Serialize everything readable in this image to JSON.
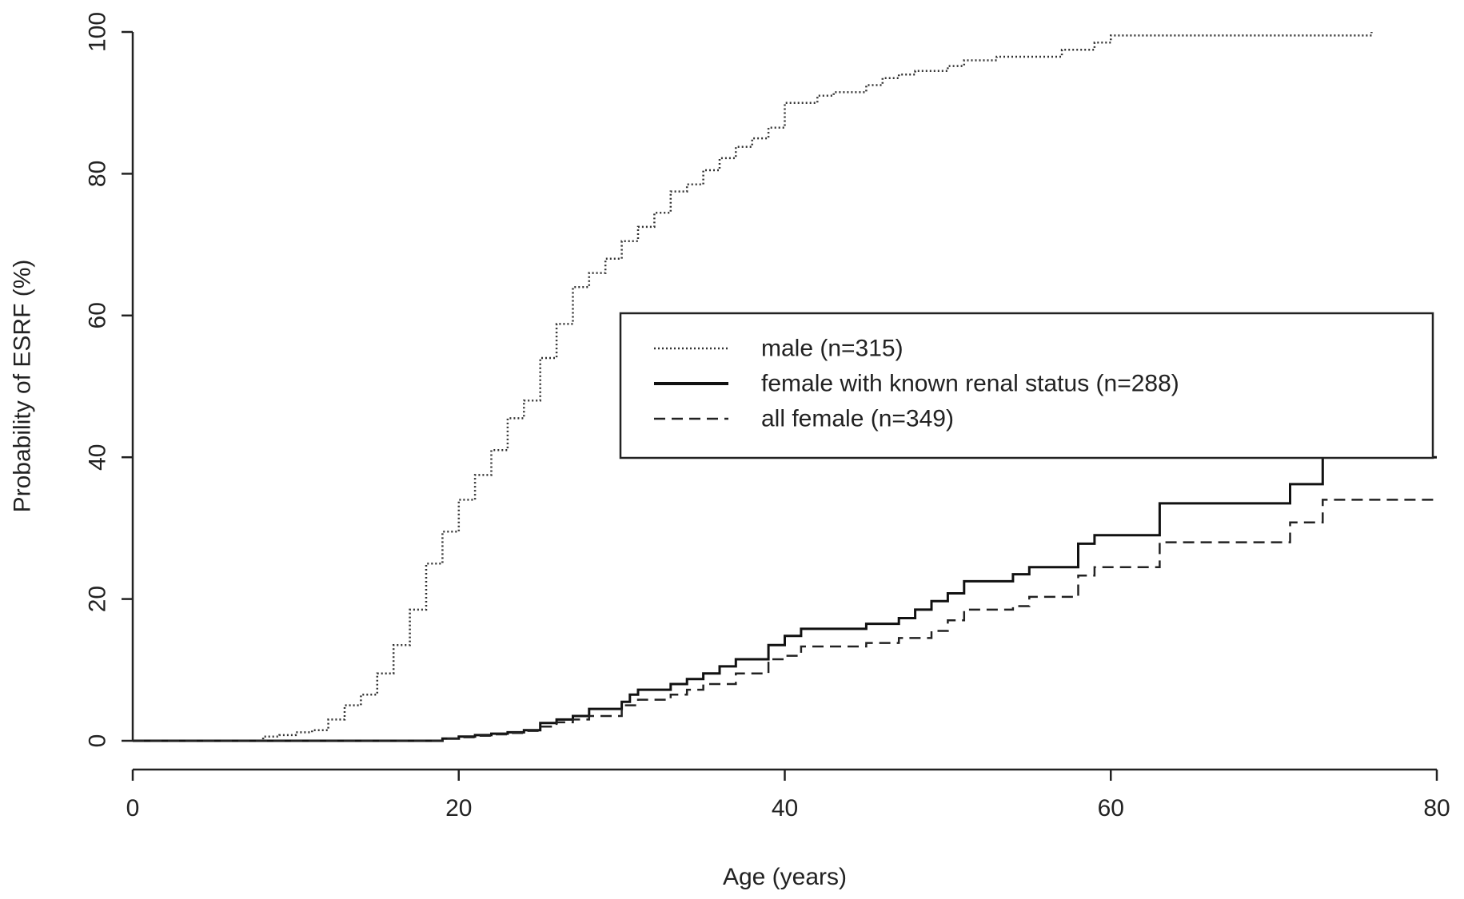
{
  "chart_data": {
    "type": "line",
    "step": true,
    "xlabel": "Age (years)",
    "ylabel": "Probability of ESRF (%)",
    "xlim": [
      0,
      80
    ],
    "ylim": [
      0,
      100
    ],
    "xticks": [
      0,
      20,
      40,
      60,
      80
    ],
    "yticks": [
      0,
      20,
      40,
      60,
      80,
      100
    ],
    "grid": false,
    "legend_position": "center-right",
    "series": [
      {
        "name": "male (n=315)",
        "line_style": "dotted",
        "color": "#333333",
        "points": [
          [
            0,
            0
          ],
          [
            8,
            0
          ],
          [
            8,
            0.6
          ],
          [
            9,
            0.8
          ],
          [
            10,
            1.2
          ],
          [
            11,
            1.5
          ],
          [
            12,
            3
          ],
          [
            13,
            5
          ],
          [
            14,
            6.5
          ],
          [
            15,
            9.5
          ],
          [
            16,
            13.5
          ],
          [
            17,
            18.5
          ],
          [
            18,
            25
          ],
          [
            19,
            29.5
          ],
          [
            20,
            34
          ],
          [
            21,
            37.5
          ],
          [
            22,
            41
          ],
          [
            23,
            45.5
          ],
          [
            24,
            48
          ],
          [
            25,
            54
          ],
          [
            26,
            58.8
          ],
          [
            27,
            64
          ],
          [
            28,
            66
          ],
          [
            29,
            68
          ],
          [
            30,
            70.5
          ],
          [
            31,
            72.5
          ],
          [
            32,
            74.5
          ],
          [
            33,
            77.5
          ],
          [
            34,
            78.5
          ],
          [
            35,
            80.5
          ],
          [
            36,
            82.2
          ],
          [
            37,
            83.8
          ],
          [
            38,
            85
          ],
          [
            39,
            86.5
          ],
          [
            40,
            90
          ],
          [
            42,
            91
          ],
          [
            43,
            91.5
          ],
          [
            45,
            92.5
          ],
          [
            46,
            93.5
          ],
          [
            47,
            94
          ],
          [
            48,
            94.5
          ],
          [
            50,
            95.2
          ],
          [
            51,
            96
          ],
          [
            53,
            96.5
          ],
          [
            57,
            97.5
          ],
          [
            59,
            98.5
          ],
          [
            60,
            99.5
          ],
          [
            76,
            99.5
          ],
          [
            76,
            100
          ]
        ]
      },
      {
        "name": "female with known renal status (n=288)",
        "line_style": "solid",
        "color": "#111111",
        "points": [
          [
            0,
            0
          ],
          [
            19,
            0
          ],
          [
            19,
            0.3
          ],
          [
            20,
            0.6
          ],
          [
            21,
            0.8
          ],
          [
            22,
            1
          ],
          [
            23,
            1.2
          ],
          [
            24,
            1.5
          ],
          [
            25,
            2.5
          ],
          [
            26,
            3
          ],
          [
            27,
            3.5
          ],
          [
            28,
            4.5
          ],
          [
            30,
            5.5
          ],
          [
            30.5,
            6.5
          ],
          [
            31,
            7.2
          ],
          [
            33,
            8
          ],
          [
            34,
            8.7
          ],
          [
            35,
            9.5
          ],
          [
            36,
            10.5
          ],
          [
            37,
            11.5
          ],
          [
            39,
            13.5
          ],
          [
            40,
            14.8
          ],
          [
            41,
            15.8
          ],
          [
            45,
            16.5
          ],
          [
            47,
            17.3
          ],
          [
            48,
            18.5
          ],
          [
            49,
            19.7
          ],
          [
            50,
            20.8
          ],
          [
            51,
            22.5
          ],
          [
            54,
            23.5
          ],
          [
            55,
            24.5
          ],
          [
            58,
            27.8
          ],
          [
            59,
            29
          ],
          [
            63,
            33.5
          ],
          [
            71,
            36.2
          ],
          [
            73,
            40
          ],
          [
            80,
            40
          ]
        ]
      },
      {
        "name": "all female (n=349)",
        "line_style": "dashed",
        "color": "#222222",
        "points": [
          [
            0,
            0
          ],
          [
            19,
            0
          ],
          [
            19,
            0.3
          ],
          [
            20,
            0.5
          ],
          [
            21,
            0.7
          ],
          [
            22,
            0.9
          ],
          [
            23,
            1.1
          ],
          [
            24,
            1.4
          ],
          [
            25,
            2
          ],
          [
            26,
            2.6
          ],
          [
            27,
            3
          ],
          [
            28,
            3.5
          ],
          [
            30,
            5
          ],
          [
            31,
            5.8
          ],
          [
            33,
            6.5
          ],
          [
            34,
            7.2
          ],
          [
            35,
            8
          ],
          [
            37,
            9.5
          ],
          [
            39,
            11.5
          ],
          [
            40,
            12
          ],
          [
            41,
            13.3
          ],
          [
            45,
            13.8
          ],
          [
            47,
            14.5
          ],
          [
            49,
            15.5
          ],
          [
            50,
            17
          ],
          [
            51,
            18.5
          ],
          [
            54,
            19
          ],
          [
            55,
            20.3
          ],
          [
            58,
            23.3
          ],
          [
            59,
            24.5
          ],
          [
            63,
            28
          ],
          [
            71,
            30.8
          ],
          [
            73,
            34
          ],
          [
            80,
            34
          ]
        ]
      }
    ]
  }
}
